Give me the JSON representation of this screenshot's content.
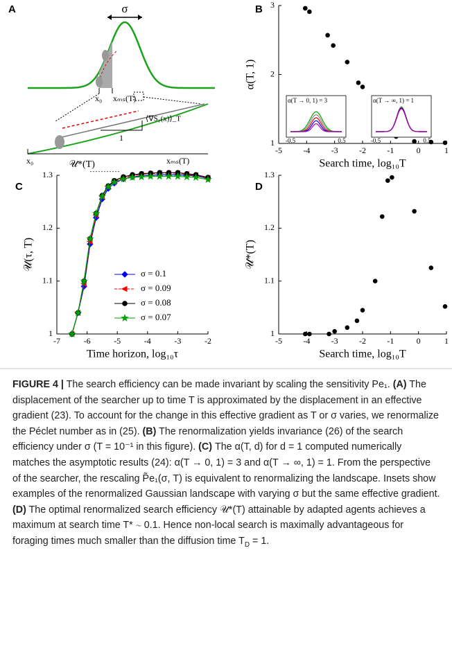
{
  "panel_a": {
    "letter": "A",
    "sigma": "σ",
    "x0_top": "x₀",
    "xms_top": "xₘₛ(T)",
    "gradient": "⟨∇S₁(x)⟩_T",
    "slope": "1",
    "x0_bottom": "x₀",
    "xms_bottom": "xₘₛ(T)"
  },
  "chart_data": [
    {
      "type": "scatter",
      "letter": "B",
      "xlabel": "Search time, log₁₀T",
      "ylabel": "α(T, 1)",
      "color": "#000000",
      "x": [
        -4.05,
        -3.9,
        -3.25,
        -3.05,
        -2.55,
        -2.15,
        -2.0,
        -1.55,
        -1.3,
        -1.15,
        -1.0,
        -0.8,
        -0.15,
        0.45,
        0.95
      ],
      "values": [
        2.96,
        2.91,
        2.57,
        2.42,
        2.18,
        1.88,
        1.82,
        1.45,
        1.34,
        1.25,
        1.18,
        1.1,
        1.03,
        1.02,
        1.01
      ],
      "xlim": [
        -5,
        1
      ],
      "xticks": [
        -5,
        -4,
        -3,
        -2,
        -1,
        0,
        1
      ],
      "ylim": [
        1,
        3
      ],
      "yticks": [
        1,
        2,
        3
      ],
      "insets": [
        {
          "label": "α(T → 0, 1) = 3",
          "xticks": [
            -0.5,
            0.5
          ]
        },
        {
          "label": "α(T → ∞, 1) = 1",
          "xticks": [
            -0.5,
            0.5
          ]
        }
      ]
    },
    {
      "type": "line",
      "letter": "C",
      "xlabel": "Time horizon, log₁₀τ",
      "ylabel": "𝒰(τ, T)",
      "annotation": "𝒰*(T)",
      "x": [
        -6.5,
        -6.3,
        -6.1,
        -5.9,
        -5.7,
        -5.5,
        -5.3,
        -5.1,
        -4.8,
        -4.5,
        -4.2,
        -3.9,
        -3.6,
        -3.3,
        -3.0,
        -2.7,
        -2.4,
        -2.0
      ],
      "series": [
        {
          "name": "σ = 0.1",
          "color": "#0000ff",
          "marker": "diamond",
          "linestyle": "solid",
          "values": [
            1.0,
            1.04,
            1.09,
            1.17,
            1.22,
            1.255,
            1.275,
            1.285,
            1.293,
            1.297,
            1.299,
            1.3,
            1.301,
            1.301,
            1.301,
            1.3,
            1.299,
            1.294
          ]
        },
        {
          "name": "σ = 0.09",
          "color": "#ff0000",
          "marker": "triangle",
          "linestyle": "dashed",
          "values": [
            1.0,
            1.04,
            1.095,
            1.175,
            1.225,
            1.26,
            1.278,
            1.288,
            1.295,
            1.299,
            1.302,
            1.303,
            1.304,
            1.304,
            1.304,
            1.302,
            1.3,
            1.295
          ]
        },
        {
          "name": "σ = 0.08",
          "color": "#000000",
          "marker": "circle",
          "linestyle": "solid",
          "values": [
            1.0,
            1.04,
            1.1,
            1.18,
            1.228,
            1.262,
            1.28,
            1.29,
            1.297,
            1.301,
            1.303,
            1.304,
            1.305,
            1.305,
            1.305,
            1.303,
            1.301,
            1.296
          ]
        },
        {
          "name": "σ = 0.07",
          "color": "#00a000",
          "marker": "star",
          "linestyle": "solid",
          "values": [
            1.0,
            1.04,
            1.1,
            1.18,
            1.228,
            1.26,
            1.278,
            1.287,
            1.293,
            1.296,
            1.297,
            1.298,
            1.298,
            1.298,
            1.298,
            1.297,
            1.296,
            1.292
          ]
        }
      ],
      "xlim": [
        -7,
        -2
      ],
      "xticks": [
        -7,
        -6,
        -5,
        -4,
        -3,
        -2
      ],
      "ylim": [
        1,
        1.3
      ],
      "yticks": [
        1,
        1.1,
        1.2,
        1.3
      ],
      "legend": "lower right"
    },
    {
      "type": "scatter",
      "letter": "D",
      "xlabel": "Search time, log₁₀T",
      "ylabel": "𝒰*(T)",
      "color": "#000000",
      "x": [
        -4.05,
        -3.9,
        -3.2,
        -3.0,
        -2.55,
        -2.2,
        -2.0,
        -1.55,
        -1.3,
        -1.1,
        -0.95,
        -0.15,
        0.45,
        0.95
      ],
      "values": [
        1.0,
        1.0,
        1.0,
        1.005,
        1.012,
        1.025,
        1.045,
        1.1,
        1.222,
        1.29,
        1.296,
        1.232,
        1.125,
        1.052
      ],
      "xlim": [
        -5,
        1
      ],
      "xticks": [
        -5,
        -4,
        -3,
        -2,
        -1,
        0,
        1
      ],
      "ylim": [
        1,
        1.3
      ],
      "yticks": [
        1,
        1.1,
        1.2,
        1.3
      ]
    }
  ],
  "caption": [
    {
      "text": "FIGURE 4 |",
      "format": "b"
    },
    {
      "text": " The search efficiency can be made invariant by scaling the sensitivity Pe₁. "
    },
    {
      "text": "(A)",
      "format": "b"
    },
    {
      "text": " The displacement of the searcher up to time T is approximated by the displacement in an effective gradient (23). To account for the change in this effective gradient as T or σ varies, we renormalize the Péclet number as in (25). "
    },
    {
      "text": "(B)",
      "format": "b"
    },
    {
      "text": " The renormalization yields invariance (26) of the search efficiency under σ (T = 10⁻¹ in this figure). "
    },
    {
      "text": "(C)",
      "format": "b"
    },
    {
      "text": " The α(T, d) for d = 1 computed numerically matches the asymptotic results (24): α(T → 0, 1) = 3 and α(T → ∞, 1) = 1. From the perspective of the searcher, the rescaling P̃e₁(σ, T) is equivalent to renormalizing the landscape. Insets show examples of the renormalized Gaussian landscape with varying σ but the same effective gradient. "
    },
    {
      "text": "(D)",
      "format": "b"
    },
    {
      "text": " The optimal renormalized search efficiency 𝒰*(T) attainable by adapted agents achieves a maximum at search time T* ∼ 0.1. Hence non-local search is maximally advantageous for foraging times much smaller than the diffusion time T"
    },
    {
      "text": "D",
      "format": "sub"
    },
    {
      "text": " = 1."
    }
  ]
}
